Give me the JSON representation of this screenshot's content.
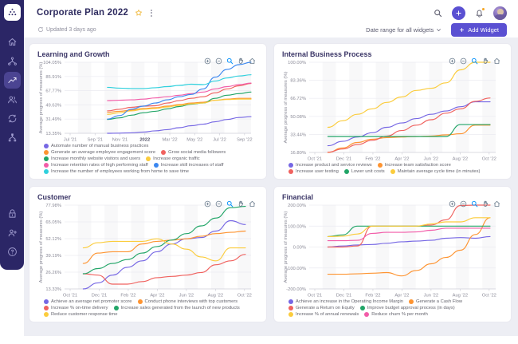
{
  "app": {
    "title": "Corporate Plan 2022",
    "updated": "Updated 3 days ago",
    "date_range_label": "Date range for all widgets",
    "add_widget_label": "Add Widget"
  },
  "colors": {
    "sidebar_bg": "#2b2666",
    "accent": "#5a50d2",
    "notification_dot": "#f5a623",
    "star": "#f0b93c",
    "page_bg": "#edeef4",
    "toolbar_active": "#008ffb"
  },
  "sidebar": {
    "active": "metrics",
    "top_icons": [
      "home",
      "strategy",
      "metrics",
      "people",
      "sync",
      "alignment"
    ],
    "bottom_icons": [
      "lock",
      "invite-user",
      "help"
    ]
  },
  "header_icons": [
    "search-icon",
    "add-icon",
    "notifications-icon",
    "avatar"
  ],
  "chart_toolbar_icons": [
    "zoom-in",
    "zoom-out",
    "selection-zoom",
    "panning",
    "reset-zoom"
  ],
  "chart_data": [
    {
      "type": "line",
      "title": "Learning and Growth",
      "ylabel": "Average progress of measures (%)",
      "ymin": 13.35,
      "ymax": 104.05,
      "yticks": [
        "104.05%",
        "85.91%",
        "67.77%",
        "49.63%",
        "31.49%",
        "13.35%"
      ],
      "xticks": [
        "Jul '21",
        "Sep '21",
        "Nov '21",
        "2022",
        "Mar '22",
        "May '22",
        "Jul '22",
        "Sep '22"
      ],
      "bold_xticks": [
        "2022"
      ],
      "x_start_frac": 0.23,
      "x_end_frac": 1.0,
      "grid": true,
      "legend_position": "bottom",
      "series": [
        {
          "name": "Automate number of manual business practices",
          "color": "#7667e4",
          "values": [
            13.4,
            13.6,
            14,
            15,
            16.5,
            18,
            20.5,
            23,
            25,
            28,
            31,
            33.5,
            34.5
          ]
        },
        {
          "name": "Generate an average employee engagement score",
          "color": "#fe9431",
          "values": [
            40,
            41.5,
            43,
            45,
            46,
            48,
            50,
            52,
            53,
            55.5,
            57,
            58,
            58
          ]
        },
        {
          "name": "Grow social media followers",
          "color": "#f0625f",
          "values": [
            42,
            44,
            46.5,
            48,
            48.5,
            52,
            55,
            58,
            60,
            65,
            70,
            74,
            77
          ]
        },
        {
          "name": "Increase monthly website visitors and users",
          "color": "#21a567",
          "values": [
            31,
            33,
            36.5,
            39.5,
            41.5,
            44.5,
            47.5,
            50.5,
            52,
            58,
            62,
            64,
            66
          ]
        },
        {
          "name": "Increase organic traffic",
          "color": "#fbcc3c",
          "values": [
            37.5,
            39.5,
            42,
            44,
            45,
            47,
            49,
            51,
            52,
            55.5,
            56.5,
            57,
            57
          ]
        },
        {
          "name": "Increase retention rates of high performing staff",
          "color": "#f25ca8",
          "values": [
            55,
            55.5,
            56,
            57,
            58.5,
            60,
            62,
            64,
            66,
            70,
            73,
            75.5,
            77.5
          ]
        },
        {
          "name": "Increase skill increases of staff",
          "color": "#3b87f0",
          "values": [
            31.5,
            36,
            44,
            48,
            52,
            56,
            60,
            63,
            70,
            85,
            95,
            101,
            104
          ]
        },
        {
          "name": "Increase the number of employees working from home to save time",
          "color": "#2fd0dd",
          "values": [
            72,
            71,
            70.5,
            70.5,
            71.5,
            73,
            74.5,
            76,
            75.5,
            80,
            84,
            86.5,
            88
          ]
        }
      ]
    },
    {
      "type": "line",
      "title": "Internal Business Process",
      "ylabel": "Average progress of measures (%)",
      "ymin": 16.8,
      "ymax": 100.0,
      "yticks": [
        "100.00%",
        "83.36%",
        "66.72%",
        "50.08%",
        "33.44%",
        "16.80%"
      ],
      "xticks": [
        "Oct '21",
        "Dec '21",
        "Feb '22",
        "Apr '22",
        "Jun '22",
        "Aug '22",
        "Oct '22"
      ],
      "bold_xticks": [],
      "x_start_frac": 0.1,
      "x_end_frac": 0.97,
      "grid": true,
      "legend_position": "bottom",
      "series": [
        {
          "name": "Increase product and service reviews",
          "color": "#7667e4",
          "values": [
            23,
            27,
            31,
            35,
            40,
            44,
            48,
            52,
            55,
            59,
            63.5,
            63.5
          ]
        },
        {
          "name": "Increase team satisfaction score",
          "color": "#fe9431",
          "values": [
            15,
            21,
            26,
            29,
            30.5,
            31,
            31.5,
            32,
            33,
            34,
            42,
            42
          ]
        },
        {
          "name": "Increase user testing",
          "color": "#f0625f",
          "values": [
            17,
            20,
            24,
            28,
            32,
            37,
            42,
            47,
            53,
            57,
            64,
            67
          ]
        },
        {
          "name": "Lower unit costs",
          "color": "#21a567",
          "values": [
            31.5,
            31.5,
            31.5,
            31.5,
            31.5,
            31.5,
            31.5,
            31.5,
            31.5,
            42.5,
            42.5,
            42.5
          ]
        },
        {
          "name": "Maintain average cycle time (in minutes)",
          "color": "#fbcc3c",
          "values": [
            40,
            46,
            52,
            57,
            63,
            68,
            74,
            76,
            81,
            93,
            100,
            100
          ]
        }
      ]
    },
    {
      "type": "line",
      "title": "Customer",
      "ylabel": "Average progress of measures (%)",
      "ymin": 13.33,
      "ymax": 77.98,
      "yticks": [
        "77.98%",
        "65.05%",
        "52.12%",
        "39.19%",
        "26.26%",
        "13.33%"
      ],
      "xticks": [
        "Oct '21",
        "Dec '21",
        "Feb '22",
        "Apr '22",
        "Jun '22",
        "Aug '22",
        "Oct '22"
      ],
      "bold_xticks": [],
      "x_start_frac": 0.1,
      "x_end_frac": 0.97,
      "grid": true,
      "legend_position": "bottom",
      "series": [
        {
          "name": "Achieve an average net promoter score",
          "color": "#7667e4",
          "values": [
            13.3,
            18,
            24,
            30,
            35,
            42,
            48,
            52,
            53,
            58,
            66,
            63
          ]
        },
        {
          "name": "Conduct phone interviews with top customers",
          "color": "#fe9431",
          "values": [
            33,
            41,
            42,
            42,
            48,
            50,
            51,
            52,
            54,
            56,
            57,
            58
          ]
        },
        {
          "name": "Increase % on-time delivery",
          "color": "#f0625f",
          "values": [
            25,
            24,
            17,
            17,
            19,
            22,
            23,
            24,
            26,
            32,
            35,
            40
          ]
        },
        {
          "name": "Increase sales generated from the launch of new products",
          "color": "#21a567",
          "values": [
            25,
            29,
            33,
            36,
            41,
            46,
            51,
            56,
            62,
            68,
            76,
            77
          ]
        },
        {
          "name": "Reduce customer response time",
          "color": "#fbcc3c",
          "values": [
            45,
            49,
            50,
            50,
            50,
            52,
            48,
            44,
            38,
            35,
            45,
            45
          ]
        }
      ]
    },
    {
      "type": "line",
      "title": "Financial",
      "ylabel": "Average progress of measures (%)",
      "ymin": -200,
      "ymax": 200,
      "yticks": [
        "200.00%",
        "100.00%",
        "0.00%",
        "-100.00%",
        "-200.00%"
      ],
      "xticks": [
        "Oct '21",
        "Dec '21",
        "Feb '22",
        "Apr '22",
        "Jun '22",
        "Aug '22",
        "Oct '22"
      ],
      "bold_xticks": [],
      "x_start_frac": 0.1,
      "x_end_frac": 0.97,
      "grid": true,
      "legend_position": "bottom",
      "series": [
        {
          "name": "Achieve an increase in the Operating Income Margin",
          "color": "#7667e4",
          "values": [
            0,
            5,
            10,
            12,
            18,
            25,
            28,
            32,
            42,
            45,
            42,
            50
          ]
        },
        {
          "name": "Generate a Cash Flow",
          "color": "#fe9431",
          "values": [
            -130,
            -130,
            -128,
            -125,
            -122,
            -138,
            -112,
            -80,
            -50,
            -15,
            60,
            140
          ]
        },
        {
          "name": "Generate a Return on Equity",
          "color": "#f0625f",
          "values": [
            0,
            0,
            5,
            100,
            100,
            100,
            100,
            105,
            130,
            198,
            200,
            200
          ]
        },
        {
          "name": "Improve budget approval process (in days)",
          "color": "#21a567",
          "values": [
            50,
            58,
            100,
            100,
            100,
            100,
            100,
            100,
            100,
            100,
            100,
            100
          ]
        },
        {
          "name": "Increase % of annual renewals",
          "color": "#fbcc3c",
          "values": [
            50,
            52,
            62,
            100,
            100,
            100,
            100,
            110,
            120,
            120,
            140,
            140
          ]
        },
        {
          "name": "Reduce churn % per month",
          "color": "#f25ca8",
          "values": [
            30,
            30,
            32,
            65,
            70,
            70,
            72,
            80,
            90,
            90,
            90,
            90
          ]
        }
      ]
    }
  ]
}
